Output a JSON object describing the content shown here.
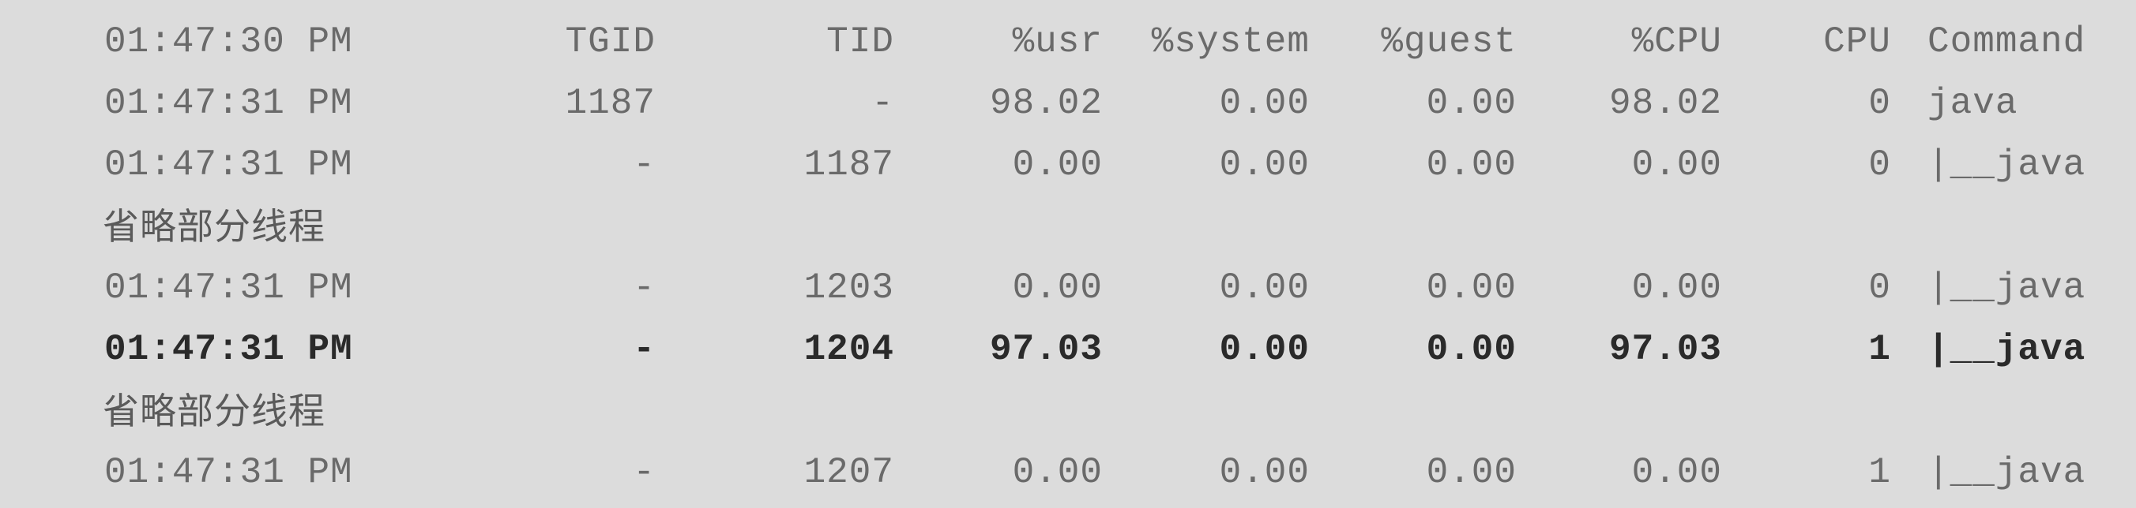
{
  "header": {
    "time": "01:47:30 PM",
    "tgid": "TGID",
    "tid": "TID",
    "usr": "%usr",
    "system": "%system",
    "guest": "%guest",
    "cpu_pct": "%CPU",
    "cpu": "CPU",
    "command": "Command"
  },
  "rows": [
    {
      "time": "01:47:31 PM",
      "tgid": "1187",
      "tid": "-",
      "usr": "98.02",
      "system": "0.00",
      "guest": "0.00",
      "cpu_pct": "98.02",
      "cpu": "0",
      "command": "java"
    },
    {
      "time": "01:47:31 PM",
      "tgid": "-",
      "tid": "1187",
      "usr": "0.00",
      "system": "0.00",
      "guest": "0.00",
      "cpu_pct": "0.00",
      "cpu": "0",
      "command": "|__java"
    }
  ],
  "note1": "省略部分线程",
  "rows2": [
    {
      "time": "01:47:31 PM",
      "tgid": "-",
      "tid": "1203",
      "usr": "0.00",
      "system": "0.00",
      "guest": "0.00",
      "cpu_pct": "0.00",
      "cpu": "0",
      "command": "|__java"
    },
    {
      "time": "01:47:31 PM",
      "tgid": "-",
      "tid": "1204",
      "usr": "97.03",
      "system": "0.00",
      "guest": "0.00",
      "cpu_pct": "97.03",
      "cpu": "1",
      "command": "|__java"
    }
  ],
  "note2": "省略部分线程",
  "rows3": [
    {
      "time": "01:47:31 PM",
      "tgid": "-",
      "tid": "1207",
      "usr": "0.00",
      "system": "0.00",
      "guest": "0.00",
      "cpu_pct": "0.00",
      "cpu": "1",
      "command": "|__java"
    }
  ]
}
